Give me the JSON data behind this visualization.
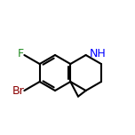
{
  "bg_color": "#ffffff",
  "bond_color": "#000000",
  "atom_colors": {
    "N": "#0000ff",
    "Br": "#8b0000",
    "F": "#228B22",
    "H": "#000000"
  },
  "bond_width": 1.5,
  "font_size": 9,
  "figsize": [
    1.52,
    1.52
  ],
  "dpi": 100,
  "bl": 20
}
